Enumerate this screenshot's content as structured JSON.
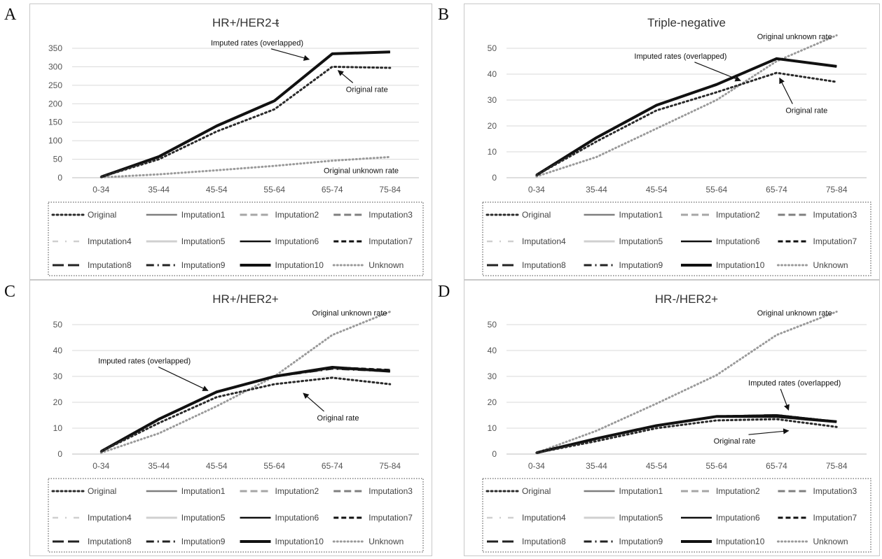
{
  "legend_entries": [
    {
      "label": "Original",
      "color": "#2a2a2a",
      "width": 3,
      "dash": "2 4",
      "cap": "round"
    },
    {
      "label": "Imputation1",
      "color": "#7f7f7f",
      "width": 2.5,
      "dash": ""
    },
    {
      "label": "Imputation2",
      "color": "#a6a6a6",
      "width": 3,
      "dash": "10 5"
    },
    {
      "label": "Imputation3",
      "color": "#7f7f7f",
      "width": 3,
      "dash": "10 5"
    },
    {
      "label": "Imputation4",
      "color": "#cfcfcf",
      "width": 2.5,
      "dash": "8 10 2 10"
    },
    {
      "label": "Imputation5",
      "color": "#d0d0d0",
      "width": 3,
      "dash": ""
    },
    {
      "label": "Imputation6",
      "color": "#111111",
      "width": 2.5,
      "dash": ""
    },
    {
      "label": "Imputation7",
      "color": "#111111",
      "width": 3,
      "dash": "7 4"
    },
    {
      "label": "Imputation8",
      "color": "#222222",
      "width": 3,
      "dash": "16 6"
    },
    {
      "label": "Imputation9",
      "color": "#222222",
      "width": 3,
      "dash": "11 5 2 5"
    },
    {
      "label": "Imputation10",
      "color": "#111111",
      "width": 4,
      "dash": ""
    },
    {
      "label": "Unknown",
      "color": "#9a9a9a",
      "width": 3,
      "dash": "1 4",
      "cap": "round"
    }
  ],
  "chart_data": [
    {
      "panel": "A",
      "type": "line",
      "title": "HR+/HER2-ᵵ",
      "categories": [
        "0-34",
        "35-44",
        "45-54",
        "55-64",
        "65-74",
        "75-84"
      ],
      "ylim": [
        0,
        350
      ],
      "yticks": [
        "0",
        "50",
        "100",
        "150",
        "200",
        "250",
        "300",
        "350"
      ],
      "grid": true,
      "legend_position": "bottom",
      "series": [
        {
          "name": "Original",
          "values": [
            2,
            50,
            125,
            185,
            300,
            297
          ]
        },
        {
          "name": "Imputation1",
          "values": [
            2,
            57,
            140,
            208,
            335,
            340
          ]
        },
        {
          "name": "Imputation2",
          "values": [
            2,
            57,
            140,
            208,
            335,
            340
          ]
        },
        {
          "name": "Imputation3",
          "values": [
            2,
            57,
            140,
            208,
            335,
            340
          ]
        },
        {
          "name": "Imputation4",
          "values": [
            2,
            57,
            140,
            208,
            335,
            340
          ]
        },
        {
          "name": "Imputation5",
          "values": [
            2,
            57,
            140,
            208,
            335,
            340
          ]
        },
        {
          "name": "Imputation6",
          "values": [
            2,
            57,
            140,
            208,
            335,
            340
          ]
        },
        {
          "name": "Imputation7",
          "values": [
            2,
            57,
            140,
            208,
            335,
            340
          ]
        },
        {
          "name": "Imputation8",
          "values": [
            2,
            57,
            140,
            208,
            335,
            340
          ]
        },
        {
          "name": "Imputation9",
          "values": [
            2,
            57,
            140,
            208,
            335,
            340
          ]
        },
        {
          "name": "Imputation10",
          "values": [
            2,
            57,
            140,
            208,
            335,
            340
          ]
        },
        {
          "name": "Unknown",
          "values": [
            1,
            9,
            20,
            32,
            46,
            56
          ]
        }
      ],
      "annotations": [
        {
          "text": "Imputed rates (overlapped)",
          "tx": 2.7,
          "ty": 358,
          "ax": 3.6,
          "ay": 320
        },
        {
          "text": "Original rate",
          "tx": 4.6,
          "ty": 232,
          "ax": 4.1,
          "ay": 290
        },
        {
          "text": "Original unknown rate",
          "tx": 4.5,
          "ty": 12,
          "ax": null,
          "ay": null
        }
      ]
    },
    {
      "panel": "B",
      "type": "line",
      "title": "Triple-negative",
      "categories": [
        "0-34",
        "35-44",
        "45-54",
        "55-64",
        "65-74",
        "75-84"
      ],
      "ylim": [
        0,
        50
      ],
      "yticks": [
        "0",
        "10",
        "20",
        "30",
        "40",
        "50"
      ],
      "grid": true,
      "legend_position": "bottom",
      "series": [
        {
          "name": "Original",
          "values": [
            1,
            14,
            26,
            33,
            40.5,
            37
          ]
        },
        {
          "name": "Imputation1",
          "values": [
            1,
            15.5,
            28,
            36,
            46,
            43
          ]
        },
        {
          "name": "Imputation2",
          "values": [
            1,
            15.5,
            28,
            36,
            46,
            43
          ]
        },
        {
          "name": "Imputation3",
          "values": [
            1,
            15.5,
            28,
            36,
            46,
            43
          ]
        },
        {
          "name": "Imputation4",
          "values": [
            1,
            15.5,
            28,
            36,
            46,
            43
          ]
        },
        {
          "name": "Imputation5",
          "values": [
            1,
            15.5,
            28,
            36,
            46,
            43
          ]
        },
        {
          "name": "Imputation6",
          "values": [
            1,
            15.5,
            28,
            36,
            46,
            43
          ]
        },
        {
          "name": "Imputation7",
          "values": [
            1,
            15.5,
            28,
            36,
            46,
            43
          ]
        },
        {
          "name": "Imputation8",
          "values": [
            1,
            15.5,
            28,
            36,
            46,
            43
          ]
        },
        {
          "name": "Imputation9",
          "values": [
            1,
            15.5,
            28,
            36,
            46,
            43
          ]
        },
        {
          "name": "Imputation10",
          "values": [
            1,
            15.5,
            28,
            36,
            46,
            43
          ]
        },
        {
          "name": "Unknown",
          "values": [
            0.5,
            8,
            19,
            30,
            45,
            55
          ]
        }
      ],
      "annotations": [
        {
          "text": "Imputed rates (overlapped)",
          "tx": 2.4,
          "ty": 46,
          "ax": 3.4,
          "ay": 37.5
        },
        {
          "text": "Original rate",
          "tx": 4.5,
          "ty": 25,
          "ax": 4.05,
          "ay": 38.5
        },
        {
          "text": "Original unknown rate",
          "tx": 4.3,
          "ty": 53.5,
          "ax": null,
          "ay": null
        }
      ]
    },
    {
      "panel": "C",
      "type": "line",
      "title": "HR+/HER2+",
      "categories": [
        "0-34",
        "35-44",
        "45-54",
        "55-64",
        "65-74",
        "75-84"
      ],
      "ylim": [
        0,
        50
      ],
      "yticks": [
        "0",
        "10",
        "20",
        "30",
        "40",
        "50"
      ],
      "grid": true,
      "legend_position": "bottom",
      "series": [
        {
          "name": "Original",
          "values": [
            1,
            12,
            22,
            27,
            29.5,
            27
          ]
        },
        {
          "name": "Imputation1",
          "values": [
            1,
            13.5,
            24,
            30,
            33.5,
            32
          ]
        },
        {
          "name": "Imputation2",
          "values": [
            1,
            13.5,
            24,
            30,
            33,
            32.5
          ]
        },
        {
          "name": "Imputation3",
          "values": [
            1,
            13.5,
            24,
            30,
            33,
            32.5
          ]
        },
        {
          "name": "Imputation4",
          "values": [
            1,
            13.5,
            24,
            30,
            33,
            32
          ]
        },
        {
          "name": "Imputation5",
          "values": [
            1,
            13.5,
            24,
            30,
            33,
            32
          ]
        },
        {
          "name": "Imputation6",
          "values": [
            1,
            13.5,
            24,
            30,
            33.5,
            32
          ]
        },
        {
          "name": "Imputation7",
          "values": [
            1,
            13.5,
            24,
            30,
            33.5,
            32.5
          ]
        },
        {
          "name": "Imputation8",
          "values": [
            1,
            13.5,
            24,
            30,
            33.5,
            32
          ]
        },
        {
          "name": "Imputation9",
          "values": [
            1,
            13.5,
            24,
            30,
            33,
            32
          ]
        },
        {
          "name": "Imputation10",
          "values": [
            1,
            13.5,
            24,
            30,
            33.5,
            32
          ]
        },
        {
          "name": "Unknown",
          "values": [
            0.5,
            8,
            18.5,
            30,
            46,
            55
          ]
        }
      ],
      "annotations": [
        {
          "text": "Imputed rates (overlapped)",
          "tx": 0.75,
          "ty": 35,
          "ax": 1.85,
          "ay": 24.5
        },
        {
          "text": "Original rate",
          "tx": 4.1,
          "ty": 13,
          "ax": 3.5,
          "ay": 23.5
        },
        {
          "text": "Original unknown rate",
          "tx": 4.3,
          "ty": 53.5,
          "ax": null,
          "ay": null
        }
      ]
    },
    {
      "panel": "D",
      "type": "line",
      "title": "HR-/HER2+",
      "categories": [
        "0-34",
        "35-44",
        "45-54",
        "55-64",
        "65-74",
        "75-84"
      ],
      "ylim": [
        0,
        50
      ],
      "yticks": [
        "0",
        "10",
        "20",
        "30",
        "40",
        "50"
      ],
      "grid": true,
      "legend_position": "bottom",
      "series": [
        {
          "name": "Original",
          "values": [
            0.5,
            5,
            10,
            13,
            13.5,
            10.5
          ]
        },
        {
          "name": "Imputation1",
          "values": [
            0.5,
            6,
            11,
            14.5,
            15,
            12.5
          ]
        },
        {
          "name": "Imputation2",
          "values": [
            0.5,
            6,
            11,
            14.5,
            15,
            12.5
          ]
        },
        {
          "name": "Imputation3",
          "values": [
            0.5,
            6,
            11,
            14.5,
            15,
            12.5
          ]
        },
        {
          "name": "Imputation4",
          "values": [
            0.5,
            6,
            11,
            14.5,
            15,
            12.5
          ]
        },
        {
          "name": "Imputation5",
          "values": [
            0.5,
            6,
            11,
            14.5,
            15,
            12.5
          ]
        },
        {
          "name": "Imputation6",
          "values": [
            0.5,
            6,
            11,
            14.5,
            15,
            12.5
          ]
        },
        {
          "name": "Imputation7",
          "values": [
            0.5,
            6,
            11,
            14.5,
            15,
            12.5
          ]
        },
        {
          "name": "Imputation8",
          "values": [
            0.5,
            6,
            11,
            14.5,
            15,
            12.5
          ]
        },
        {
          "name": "Imputation9",
          "values": [
            0.5,
            6,
            11,
            14.5,
            15,
            12.5
          ]
        },
        {
          "name": "Imputation10",
          "values": [
            0.5,
            6,
            11,
            14.5,
            14.5,
            12.5
          ]
        },
        {
          "name": "Unknown",
          "values": [
            0.5,
            9,
            19.5,
            30.5,
            46,
            55
          ]
        }
      ],
      "annotations": [
        {
          "text": "Imputed rates (overlapped)",
          "tx": 4.3,
          "ty": 26.5,
          "ax": 4.2,
          "ay": 17
        },
        {
          "text": "Original rate",
          "tx": 3.3,
          "ty": 4,
          "ax": 4.2,
          "ay": 9
        },
        {
          "text": "Original unknown rate",
          "tx": 4.3,
          "ty": 53.5,
          "ax": null,
          "ay": null
        }
      ]
    }
  ]
}
